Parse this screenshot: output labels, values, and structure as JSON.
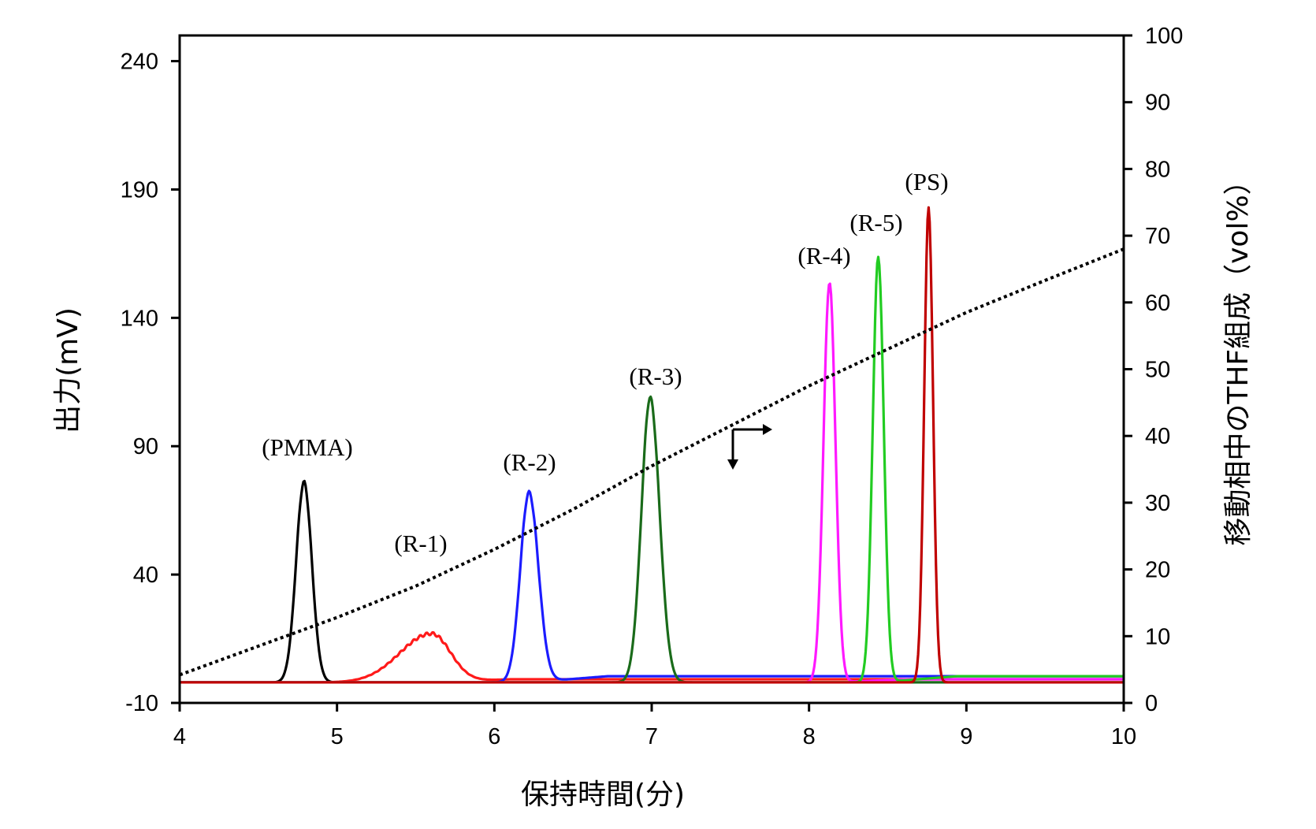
{
  "chart_data": {
    "type": "line",
    "xlabel": "保持時間(分)",
    "ylabel": "出力(mV)",
    "y2label": "移動相中のTHF組成（vol%）",
    "xlim": [
      4,
      10
    ],
    "ylim": [
      -10,
      250
    ],
    "y2lim": [
      0,
      100
    ],
    "xticks": [
      "4",
      "5",
      "6",
      "7",
      "8",
      "9",
      "10"
    ],
    "yticks": [
      "-10",
      "40",
      "90",
      "140",
      "190",
      "240"
    ],
    "y2ticks": [
      "0",
      "10",
      "20",
      "30",
      "40",
      "50",
      "60",
      "70",
      "80",
      "90",
      "100"
    ],
    "grid": false,
    "legend": "none",
    "baseline_mV": -2,
    "series": [
      {
        "name": "(PMMA)",
        "color": "#000000",
        "peak_x": 4.79,
        "peak_y": 76,
        "width": 0.05,
        "tail": 0.05
      },
      {
        "name": "(R-1)",
        "color": "#ff1a1a",
        "peak_x": 5.6,
        "peak_y": 17,
        "width": 0.2,
        "tail": 0.12
      },
      {
        "name": "(R-2)",
        "color": "#1c1cff",
        "peak_x": 6.22,
        "peak_y": 72,
        "width": 0.055,
        "tail": 0.06
      },
      {
        "name": "(R-3)",
        "color": "#1a6b1a",
        "peak_x": 6.99,
        "peak_y": 109,
        "width": 0.055,
        "tail": 0.06
      },
      {
        "name": "(R-4)",
        "color": "#ff19ff",
        "peak_x": 8.13,
        "peak_y": 154,
        "width": 0.038,
        "tail": 0.038
      },
      {
        "name": "(R-5)",
        "color": "#22cc22",
        "peak_x": 8.44,
        "peak_y": 164,
        "width": 0.035,
        "tail": 0.035
      },
      {
        "name": "(PS)",
        "color": "#c00000",
        "peak_x": 8.76,
        "peak_y": 183,
        "width": 0.028,
        "tail": 0.028
      }
    ],
    "gradient_series": {
      "axis": "right",
      "style": "dotted",
      "color": "#000000",
      "x": [
        4.0,
        4.5,
        5.0,
        5.5,
        6.0,
        6.5,
        7.0,
        7.5,
        8.0,
        8.5,
        9.0,
        9.5,
        10.0
      ],
      "y": [
        4.2,
        8.5,
        12.8,
        17.5,
        23.0,
        29.0,
        35.5,
        41.5,
        47.5,
        53.0,
        58.5,
        63.3,
        68.0
      ]
    }
  }
}
